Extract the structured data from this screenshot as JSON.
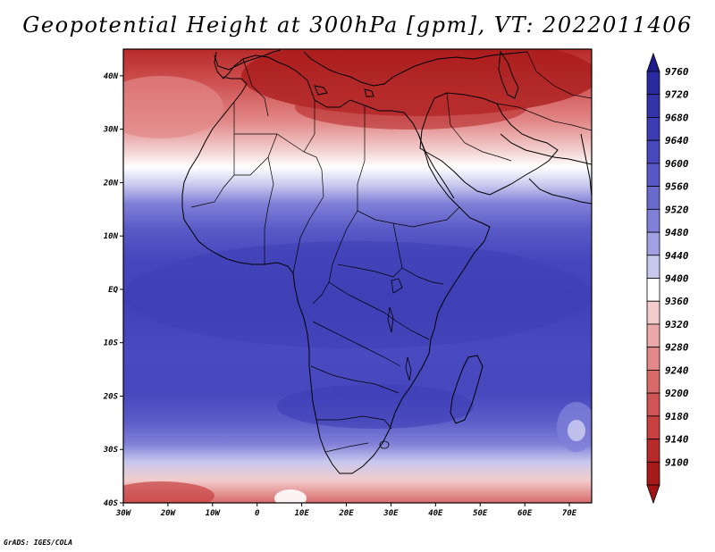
{
  "title": "Geopotential Height at 300hPa [gpm], VT: 2022011406",
  "footer": "GrADS: IGES/COLA",
  "map": {
    "lon_range": [
      -30,
      75
    ],
    "lat_range": [
      -40,
      45
    ],
    "lat_ticks": [
      {
        "value": 40,
        "label": "40N"
      },
      {
        "value": 30,
        "label": "30N"
      },
      {
        "value": 20,
        "label": "20N"
      },
      {
        "value": 10,
        "label": "10N"
      },
      {
        "value": 0,
        "label": "EQ"
      },
      {
        "value": -10,
        "label": "10S"
      },
      {
        "value": -20,
        "label": "20S"
      },
      {
        "value": -30,
        "label": "30S"
      },
      {
        "value": -40,
        "label": "40S"
      }
    ],
    "lon_ticks": [
      {
        "value": -30,
        "label": "30W"
      },
      {
        "value": -20,
        "label": "20W"
      },
      {
        "value": -10,
        "label": "10W"
      },
      {
        "value": 0,
        "label": "0"
      },
      {
        "value": 10,
        "label": "10E"
      },
      {
        "value": 20,
        "label": "20E"
      },
      {
        "value": 30,
        "label": "30E"
      },
      {
        "value": 40,
        "label": "40E"
      },
      {
        "value": 50,
        "label": "50E"
      },
      {
        "value": 60,
        "label": "60E"
      },
      {
        "value": 70,
        "label": "70E"
      }
    ]
  },
  "colorbar": {
    "levels": [
      {
        "value": "9760",
        "color": "#2a2aa0"
      },
      {
        "value": "9720",
        "color": "#3333aa"
      },
      {
        "value": "9680",
        "color": "#3c3cb4"
      },
      {
        "value": "9640",
        "color": "#4848be"
      },
      {
        "value": "9600",
        "color": "#5858c6"
      },
      {
        "value": "9560",
        "color": "#6a6ace"
      },
      {
        "value": "9520",
        "color": "#8080d8"
      },
      {
        "value": "9480",
        "color": "#a0a0e2"
      },
      {
        "value": "9440",
        "color": "#c8c8ee"
      },
      {
        "value": "9400",
        "color": "#ffffff"
      },
      {
        "value": "9360",
        "color": "#f2cccc"
      },
      {
        "value": "9320",
        "color": "#eaa8a8"
      },
      {
        "value": "9280",
        "color": "#e28888"
      },
      {
        "value": "9240",
        "color": "#d86a6a"
      },
      {
        "value": "9200",
        "color": "#d05454"
      },
      {
        "value": "9180",
        "color": "#c84040"
      },
      {
        "value": "9140",
        "color": "#b82a2a"
      },
      {
        "value": "9100",
        "color": "#a81a1a"
      }
    ],
    "top_arrow_color": "#1c1c8c",
    "bottom_arrow_color": "#a01414"
  }
}
